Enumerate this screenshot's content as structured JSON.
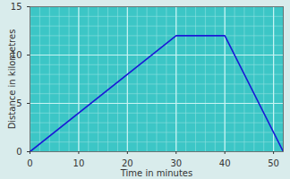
{
  "chart_data": {
    "type": "line",
    "x": [
      0,
      30,
      40,
      52
    ],
    "values": [
      0,
      12,
      12,
      0
    ],
    "color": "#1a1ad6",
    "xlabel": "Time in minutes",
    "ylabel": "Distance in kilometres",
    "xlim": [
      0,
      52
    ],
    "ylim": [
      0,
      15
    ],
    "xticks": [
      0,
      10,
      20,
      30,
      40,
      50
    ],
    "yticks": [
      0,
      5,
      10,
      15
    ],
    "grid": true
  }
}
